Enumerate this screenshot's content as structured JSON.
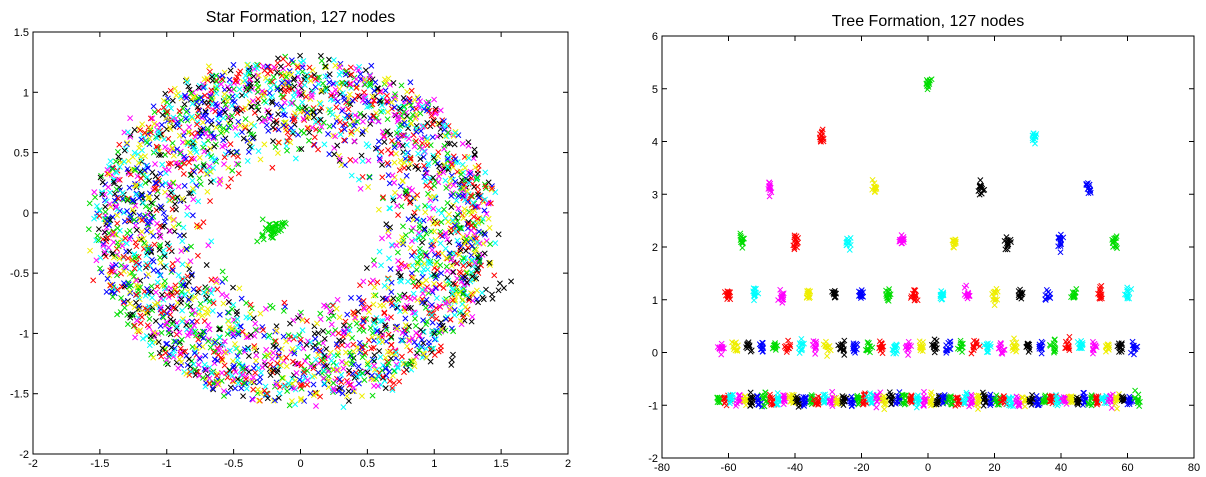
{
  "chart_data": [
    {
      "type": "scatter",
      "title": "Star Formation, 127 nodes",
      "xlim": [
        -2,
        2
      ],
      "ylim": [
        -2,
        1.5
      ],
      "xticks": [
        -2,
        -1.5,
        -1,
        -0.5,
        0,
        0.5,
        1,
        1.5,
        2
      ],
      "yticks": [
        -2,
        -1.5,
        -1,
        -0.5,
        0,
        0.5,
        1,
        1.5
      ],
      "xtick_labels": [
        "-2",
        "-1.5",
        "-1",
        "-0.5",
        "0",
        "0.5",
        "1",
        "1.5",
        "2"
      ],
      "ytick_labels": [
        "-2",
        "-1.5",
        "-1",
        "-0.5",
        "0",
        "0.5",
        "1",
        "1.5"
      ],
      "marker": "x",
      "colors": [
        "#ff0000",
        "#00dd00",
        "#0000ff",
        "#00ffff",
        "#ff00ff",
        "#eeee00",
        "#000000"
      ],
      "grid": false,
      "description_points": {
        "ring_center": [
          -0.05,
          -0.15
        ],
        "ring_inner_radius": 0.6,
        "ring_outer_radius": 1.45,
        "central_cluster": {
          "x": -0.22,
          "y": -0.15,
          "color": "#00dd00"
        },
        "tail_points": [
          [
            1.25,
            -0.55
          ],
          [
            1.45,
            -0.65
          ],
          [
            1.55,
            -0.6
          ],
          [
            1.35,
            -0.75
          ],
          [
            1.15,
            -1.2
          ],
          [
            1.3,
            0.5
          ]
        ]
      }
    },
    {
      "type": "scatter",
      "title": "Tree Formation, 127 nodes",
      "xlim": [
        -80,
        80
      ],
      "ylim": [
        -2,
        6
      ],
      "xticks": [
        -80,
        -60,
        -40,
        -20,
        0,
        20,
        40,
        60,
        80
      ],
      "yticks": [
        -2,
        -1,
        0,
        1,
        2,
        3,
        4,
        5,
        6
      ],
      "xtick_labels": [
        "-80",
        "-60",
        "-40",
        "-20",
        "0",
        "20",
        "40",
        "60",
        "80"
      ],
      "ytick_labels": [
        "-2",
        "-1",
        "0",
        "1",
        "2",
        "3",
        "4",
        "5",
        "6"
      ],
      "marker": "x",
      "grid": false,
      "levels": [
        {
          "y": 5.1,
          "nodes": [
            {
              "x": 0,
              "c": "#00dd00"
            }
          ]
        },
        {
          "y": 4.1,
          "nodes": [
            {
              "x": -32,
              "c": "#ff0000"
            },
            {
              "x": 32,
              "c": "#00ffff"
            }
          ]
        },
        {
          "y": 3.1,
          "nodes": [
            {
              "x": -48,
              "c": "#ff00ff"
            },
            {
              "x": -16,
              "c": "#eeee00"
            },
            {
              "x": 16,
              "c": "#000000"
            },
            {
              "x": 48,
              "c": "#0000ff"
            }
          ]
        },
        {
          "y": 2.1,
          "nodes": [
            {
              "x": -56,
              "c": "#00dd00"
            },
            {
              "x": -40,
              "c": "#ff0000"
            },
            {
              "x": -24,
              "c": "#00ffff"
            },
            {
              "x": -8,
              "c": "#ff00ff"
            },
            {
              "x": 8,
              "c": "#eeee00"
            },
            {
              "x": 24,
              "c": "#000000"
            },
            {
              "x": 40,
              "c": "#0000ff"
            },
            {
              "x": 56,
              "c": "#00dd00"
            }
          ]
        },
        {
          "y": 1.1,
          "nodes": [
            {
              "x": -60,
              "c": "#ff0000"
            },
            {
              "x": -52,
              "c": "#00ffff"
            },
            {
              "x": -44,
              "c": "#ff00ff"
            },
            {
              "x": -36,
              "c": "#eeee00"
            },
            {
              "x": -28,
              "c": "#000000"
            },
            {
              "x": -20,
              "c": "#0000ff"
            },
            {
              "x": -12,
              "c": "#00dd00"
            },
            {
              "x": -4,
              "c": "#ff0000"
            },
            {
              "x": 4,
              "c": "#00ffff"
            },
            {
              "x": 12,
              "c": "#ff00ff"
            },
            {
              "x": 20,
              "c": "#eeee00"
            },
            {
              "x": 28,
              "c": "#000000"
            },
            {
              "x": 36,
              "c": "#0000ff"
            },
            {
              "x": 44,
              "c": "#00dd00"
            },
            {
              "x": 52,
              "c": "#ff0000"
            },
            {
              "x": 60,
              "c": "#00ffff"
            }
          ]
        },
        {
          "y": 0.1,
          "spacing": 4,
          "from": -62,
          "to": 62,
          "color_cycle": [
            "#ff00ff",
            "#eeee00",
            "#000000",
            "#0000ff",
            "#00dd00",
            "#ff0000",
            "#00ffff"
          ]
        },
        {
          "y": -0.9,
          "spacing": 2,
          "from": -63,
          "to": 63,
          "color_cycle": [
            "#00dd00",
            "#ff0000",
            "#00ffff",
            "#ff00ff",
            "#eeee00",
            "#000000",
            "#0000ff"
          ]
        }
      ]
    }
  ]
}
